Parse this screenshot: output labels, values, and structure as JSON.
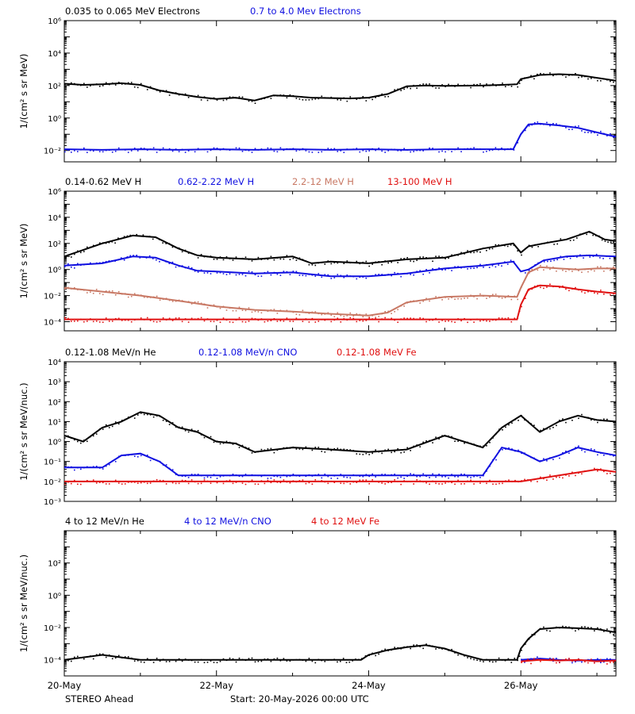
{
  "colors": {
    "black": "#000000",
    "blue": "#1010e0",
    "brown": "#c87864",
    "red": "#e01010"
  },
  "footer": {
    "left": "STEREO Ahead",
    "center": "Start: 20-May-2026 00:00 UTC"
  },
  "chart_data": [
    {
      "type": "scatter",
      "yscale": "log",
      "ylabel": "1/(cm² s sr MeV)",
      "ylim": [
        0.002,
        1000000
      ],
      "ytick_labels": [
        "10⁻²",
        "10⁰",
        "10²",
        "10⁴",
        "10⁶"
      ],
      "legend": [
        {
          "text": "0.035 to 0.065 MeV Electrons",
          "color": "#000000"
        },
        {
          "text": "0.7 to 4.0 Mev Electrons",
          "color": "#1010e0"
        }
      ],
      "series": [
        {
          "name": "0.035 to 0.065 MeV Electrons",
          "color": "#000000",
          "x": [
            0,
            0.25,
            0.5,
            0.75,
            1.0,
            1.25,
            1.5,
            1.75,
            2.0,
            2.25,
            2.5,
            2.75,
            3.0,
            3.25,
            3.5,
            3.75,
            4.0,
            4.25,
            4.5,
            4.75,
            5.0,
            5.25,
            5.5,
            5.75,
            5.95,
            6.0,
            6.25,
            6.5,
            6.75,
            7.0,
            7.25
          ],
          "y": [
            130,
            110,
            120,
            140,
            110,
            50,
            30,
            20,
            15,
            18,
            12,
            25,
            22,
            18,
            17,
            16,
            18,
            30,
            90,
            100,
            95,
            98,
            100,
            110,
            120,
            250,
            450,
            500,
            450,
            300,
            200
          ]
        },
        {
          "name": "0.7 to 4.0 Mev Electrons",
          "color": "#1010e0",
          "x": [
            0,
            0.5,
            1.0,
            1.5,
            2.0,
            2.5,
            3.0,
            3.5,
            4.0,
            4.5,
            5.0,
            5.5,
            5.9,
            6.0,
            6.1,
            6.25,
            6.5,
            6.75,
            7.0,
            7.25
          ],
          "y": [
            0.012,
            0.011,
            0.012,
            0.011,
            0.012,
            0.011,
            0.012,
            0.011,
            0.012,
            0.011,
            0.012,
            0.012,
            0.012,
            0.1,
            0.4,
            0.45,
            0.35,
            0.25,
            0.13,
            0.07
          ]
        }
      ]
    },
    {
      "type": "scatter",
      "yscale": "log",
      "ylabel": "1/(cm² s sr MeV)",
      "ylim": [
        2e-05,
        1000000
      ],
      "ytick_labels": [
        "10⁻⁴",
        "10⁻²",
        "10⁰",
        "10²",
        "10⁴",
        "10⁶"
      ],
      "legend": [
        {
          "text": "0.14-0.62 MeV H",
          "color": "#000000"
        },
        {
          "text": "0.62-2.22 MeV H",
          "color": "#1010e0"
        },
        {
          "text": "2.2-12 MeV H",
          "color": "#c87864"
        },
        {
          "text": "13-100 MeV H",
          "color": "#e01010"
        }
      ],
      "series": [
        {
          "name": "0.14-0.62 MeV H",
          "color": "#000000",
          "x": [
            0,
            0.5,
            0.9,
            1.2,
            1.5,
            1.75,
            2.0,
            2.5,
            3.0,
            3.25,
            3.5,
            4.0,
            4.5,
            5.0,
            5.5,
            5.9,
            6.0,
            6.1,
            6.3,
            6.6,
            6.9,
            7.1,
            7.25
          ],
          "y": [
            10,
            100,
            400,
            300,
            40,
            12,
            8,
            6,
            10,
            3,
            4,
            3,
            6,
            8,
            40,
            100,
            20,
            60,
            100,
            200,
            800,
            200,
            150
          ]
        },
        {
          "name": "0.62-2.22 MeV H",
          "color": "#1010e0",
          "x": [
            0,
            0.5,
            0.9,
            1.2,
            1.5,
            1.75,
            2.0,
            2.5,
            3.0,
            3.5,
            4.0,
            4.5,
            5.0,
            5.5,
            5.9,
            6.0,
            6.1,
            6.3,
            6.6,
            6.9,
            7.25
          ],
          "y": [
            2,
            3,
            10,
            8,
            2,
            0.8,
            0.7,
            0.5,
            0.6,
            0.3,
            0.3,
            0.5,
            1.2,
            2,
            4,
            0.7,
            1,
            5,
            10,
            12,
            10
          ]
        },
        {
          "name": "2.2-12 MeV H",
          "color": "#c87864",
          "x": [
            0,
            0.5,
            1.0,
            1.5,
            2.0,
            2.5,
            3.0,
            3.5,
            4.0,
            4.25,
            4.5,
            5.0,
            5.5,
            5.95,
            6.0,
            6.1,
            6.25,
            6.5,
            6.75,
            7.0,
            7.25
          ],
          "y": [
            0.04,
            0.02,
            0.01,
            0.004,
            0.0015,
            0.0008,
            0.0006,
            0.0004,
            0.0003,
            0.0005,
            0.003,
            0.008,
            0.01,
            0.008,
            0.04,
            0.6,
            1.5,
            1.2,
            1.0,
            1.2,
            1.2
          ]
        },
        {
          "name": "13-100 MeV H",
          "color": "#e01010",
          "x": [
            0,
            0.5,
            1.0,
            1.5,
            2.0,
            2.5,
            3.0,
            3.5,
            4.0,
            4.5,
            5.0,
            5.5,
            5.95,
            6.0,
            6.1,
            6.25,
            6.5,
            6.75,
            7.0,
            7.25
          ],
          "y": [
            0.00015,
            0.00015,
            0.00015,
            0.00015,
            0.00015,
            0.00015,
            0.00015,
            0.00015,
            0.00015,
            0.00015,
            0.00015,
            0.00015,
            0.00015,
            0.002,
            0.03,
            0.06,
            0.05,
            0.03,
            0.02,
            0.015
          ]
        }
      ]
    },
    {
      "type": "scatter",
      "yscale": "log",
      "ylabel": "1/(cm² s sr MeV/nuc.)",
      "ylim": [
        0.001,
        10000
      ],
      "ytick_labels": [
        "10⁻³",
        "10⁻²",
        "10⁻¹",
        "10⁰",
        "10¹",
        "10²",
        "10³",
        "10⁴"
      ],
      "legend": [
        {
          "text": "0.12-1.08 MeV/n He",
          "color": "#000000"
        },
        {
          "text": "0.12-1.08 MeV/n CNO",
          "color": "#1010e0"
        },
        {
          "text": "0.12-1.08 MeV Fe",
          "color": "#e01010"
        }
      ],
      "series": [
        {
          "name": "0.12-1.08 MeV/n He",
          "color": "#000000",
          "x": [
            0,
            0.25,
            0.5,
            0.75,
            1.0,
            1.25,
            1.5,
            1.75,
            2.0,
            2.25,
            2.5,
            3.0,
            3.5,
            4.0,
            4.5,
            5.0,
            5.5,
            5.75,
            6.0,
            6.25,
            6.5,
            6.75,
            7.0,
            7.25
          ],
          "y": [
            2,
            1,
            5,
            10,
            30,
            20,
            5,
            3,
            1,
            0.8,
            0.3,
            0.5,
            0.4,
            0.3,
            0.4,
            2,
            0.5,
            5,
            20,
            3,
            10,
            20,
            12,
            10
          ]
        },
        {
          "name": "0.12-1.08 MeV/n CNO",
          "color": "#1010e0",
          "x": [
            0,
            0.5,
            0.75,
            1.0,
            1.25,
            1.5,
            2.0,
            2.5,
            3.0,
            3.5,
            4.0,
            4.5,
            5.0,
            5.5,
            5.75,
            6.0,
            6.25,
            6.5,
            6.75,
            7.0,
            7.25
          ],
          "y": [
            0.05,
            0.05,
            0.2,
            0.25,
            0.1,
            0.02,
            0.02,
            0.02,
            0.02,
            0.02,
            0.02,
            0.02,
            0.02,
            0.02,
            0.5,
            0.3,
            0.1,
            0.2,
            0.5,
            0.3,
            0.2
          ]
        },
        {
          "name": "0.12-1.08 MeV Fe",
          "color": "#e01010",
          "x": [
            0,
            0.5,
            1.0,
            1.5,
            2.0,
            2.5,
            3.0,
            3.5,
            4.0,
            4.5,
            5.0,
            5.5,
            6.0,
            6.5,
            7.0,
            7.25
          ],
          "y": [
            0.01,
            0.01,
            0.01,
            0.01,
            0.01,
            0.01,
            0.01,
            0.01,
            0.01,
            0.01,
            0.01,
            0.01,
            0.01,
            0.02,
            0.04,
            0.03
          ]
        }
      ]
    },
    {
      "type": "scatter",
      "yscale": "log",
      "ylabel": "1/(cm² s sr MeV/nuc.)",
      "ylim": [
        1e-05,
        10000
      ],
      "ytick_labels": [
        "10⁻⁴",
        "10⁻²",
        "10⁰",
        "10²"
      ],
      "xtick_labels": [
        "20-May",
        "22-May",
        "24-May",
        "26-May"
      ],
      "xlim": [
        0,
        7.25
      ],
      "legend": [
        {
          "text": "4 to 12 MeV/n He",
          "color": "#000000"
        },
        {
          "text": "4 to 12 MeV/n CNO",
          "color": "#1010e0"
        },
        {
          "text": "4 to 12 MeV Fe",
          "color": "#e01010"
        }
      ],
      "series": [
        {
          "name": "4 to 12 MeV/n He",
          "color": "#000000",
          "x": [
            0,
            0.5,
            1.0,
            1.5,
            2.0,
            2.5,
            3.0,
            3.5,
            3.9,
            4.0,
            4.25,
            4.5,
            4.75,
            5.0,
            5.25,
            5.5,
            5.95,
            6.0,
            6.1,
            6.25,
            6.5,
            6.75,
            7.0,
            7.25
          ],
          "y": [
            0.0001,
            0.0002,
            0.0001,
            0.0001,
            0.0001,
            0.0001,
            0.0001,
            0.0001,
            0.0001,
            0.0002,
            0.0004,
            0.0006,
            0.0008,
            0.0005,
            0.0002,
            0.0001,
            0.0001,
            0.0005,
            0.002,
            0.008,
            0.01,
            0.009,
            0.008,
            0.005
          ]
        },
        {
          "name": "4 to 12 MeV/n CNO",
          "color": "#1010e0",
          "x": [
            6.0,
            6.25,
            6.5,
            6.75,
            7.0,
            7.25
          ],
          "y": [
            0.0001,
            0.00012,
            0.0001,
            9e-05,
            0.0001,
            0.0001
          ]
        },
        {
          "name": "4 to 12 MeV Fe",
          "color": "#e01010",
          "x": [
            6.0,
            6.25,
            6.5,
            6.75,
            7.0,
            7.25
          ],
          "y": [
            8e-05,
            0.0001,
            9e-05,
            0.0001,
            8e-05,
            9e-05
          ]
        }
      ]
    }
  ]
}
